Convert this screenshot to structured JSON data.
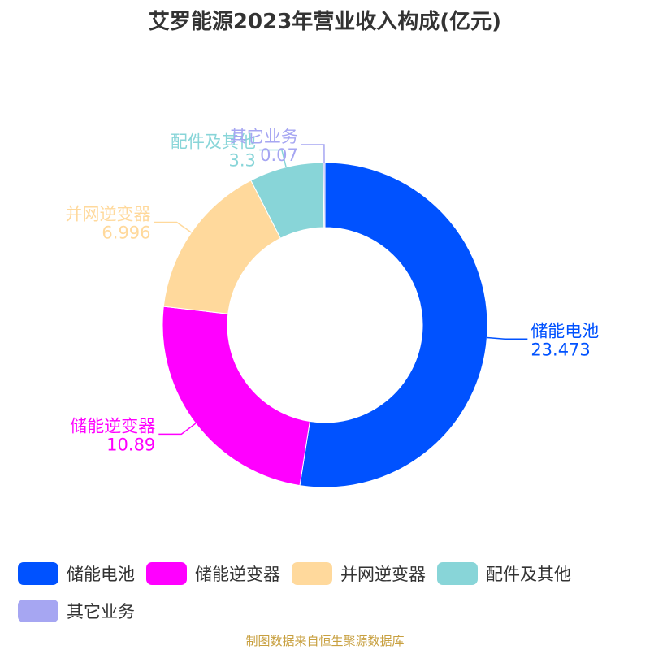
{
  "chart_data": {
    "type": "pie",
    "donut": true,
    "title": "艾罗能源2023年营业收入构成(亿元)",
    "categories": [
      "储能电池",
      "储能逆变器",
      "并网逆变器",
      "配件及其他",
      "其它业务"
    ],
    "values": [
      23.473,
      10.89,
      6.996,
      3.3,
      0.07
    ],
    "value_labels": [
      "23.473",
      "10.89",
      "6.996",
      "3.3",
      "0.07"
    ],
    "colors": [
      "#0052ff",
      "#ff00ff",
      "#ffd99c",
      "#88d5d8",
      "#a6a6f2"
    ],
    "legend_position": "bottom",
    "start_angle": "12 o'clock",
    "direction": "clockwise"
  },
  "source_text": "制图数据来自恒生聚源数据库"
}
